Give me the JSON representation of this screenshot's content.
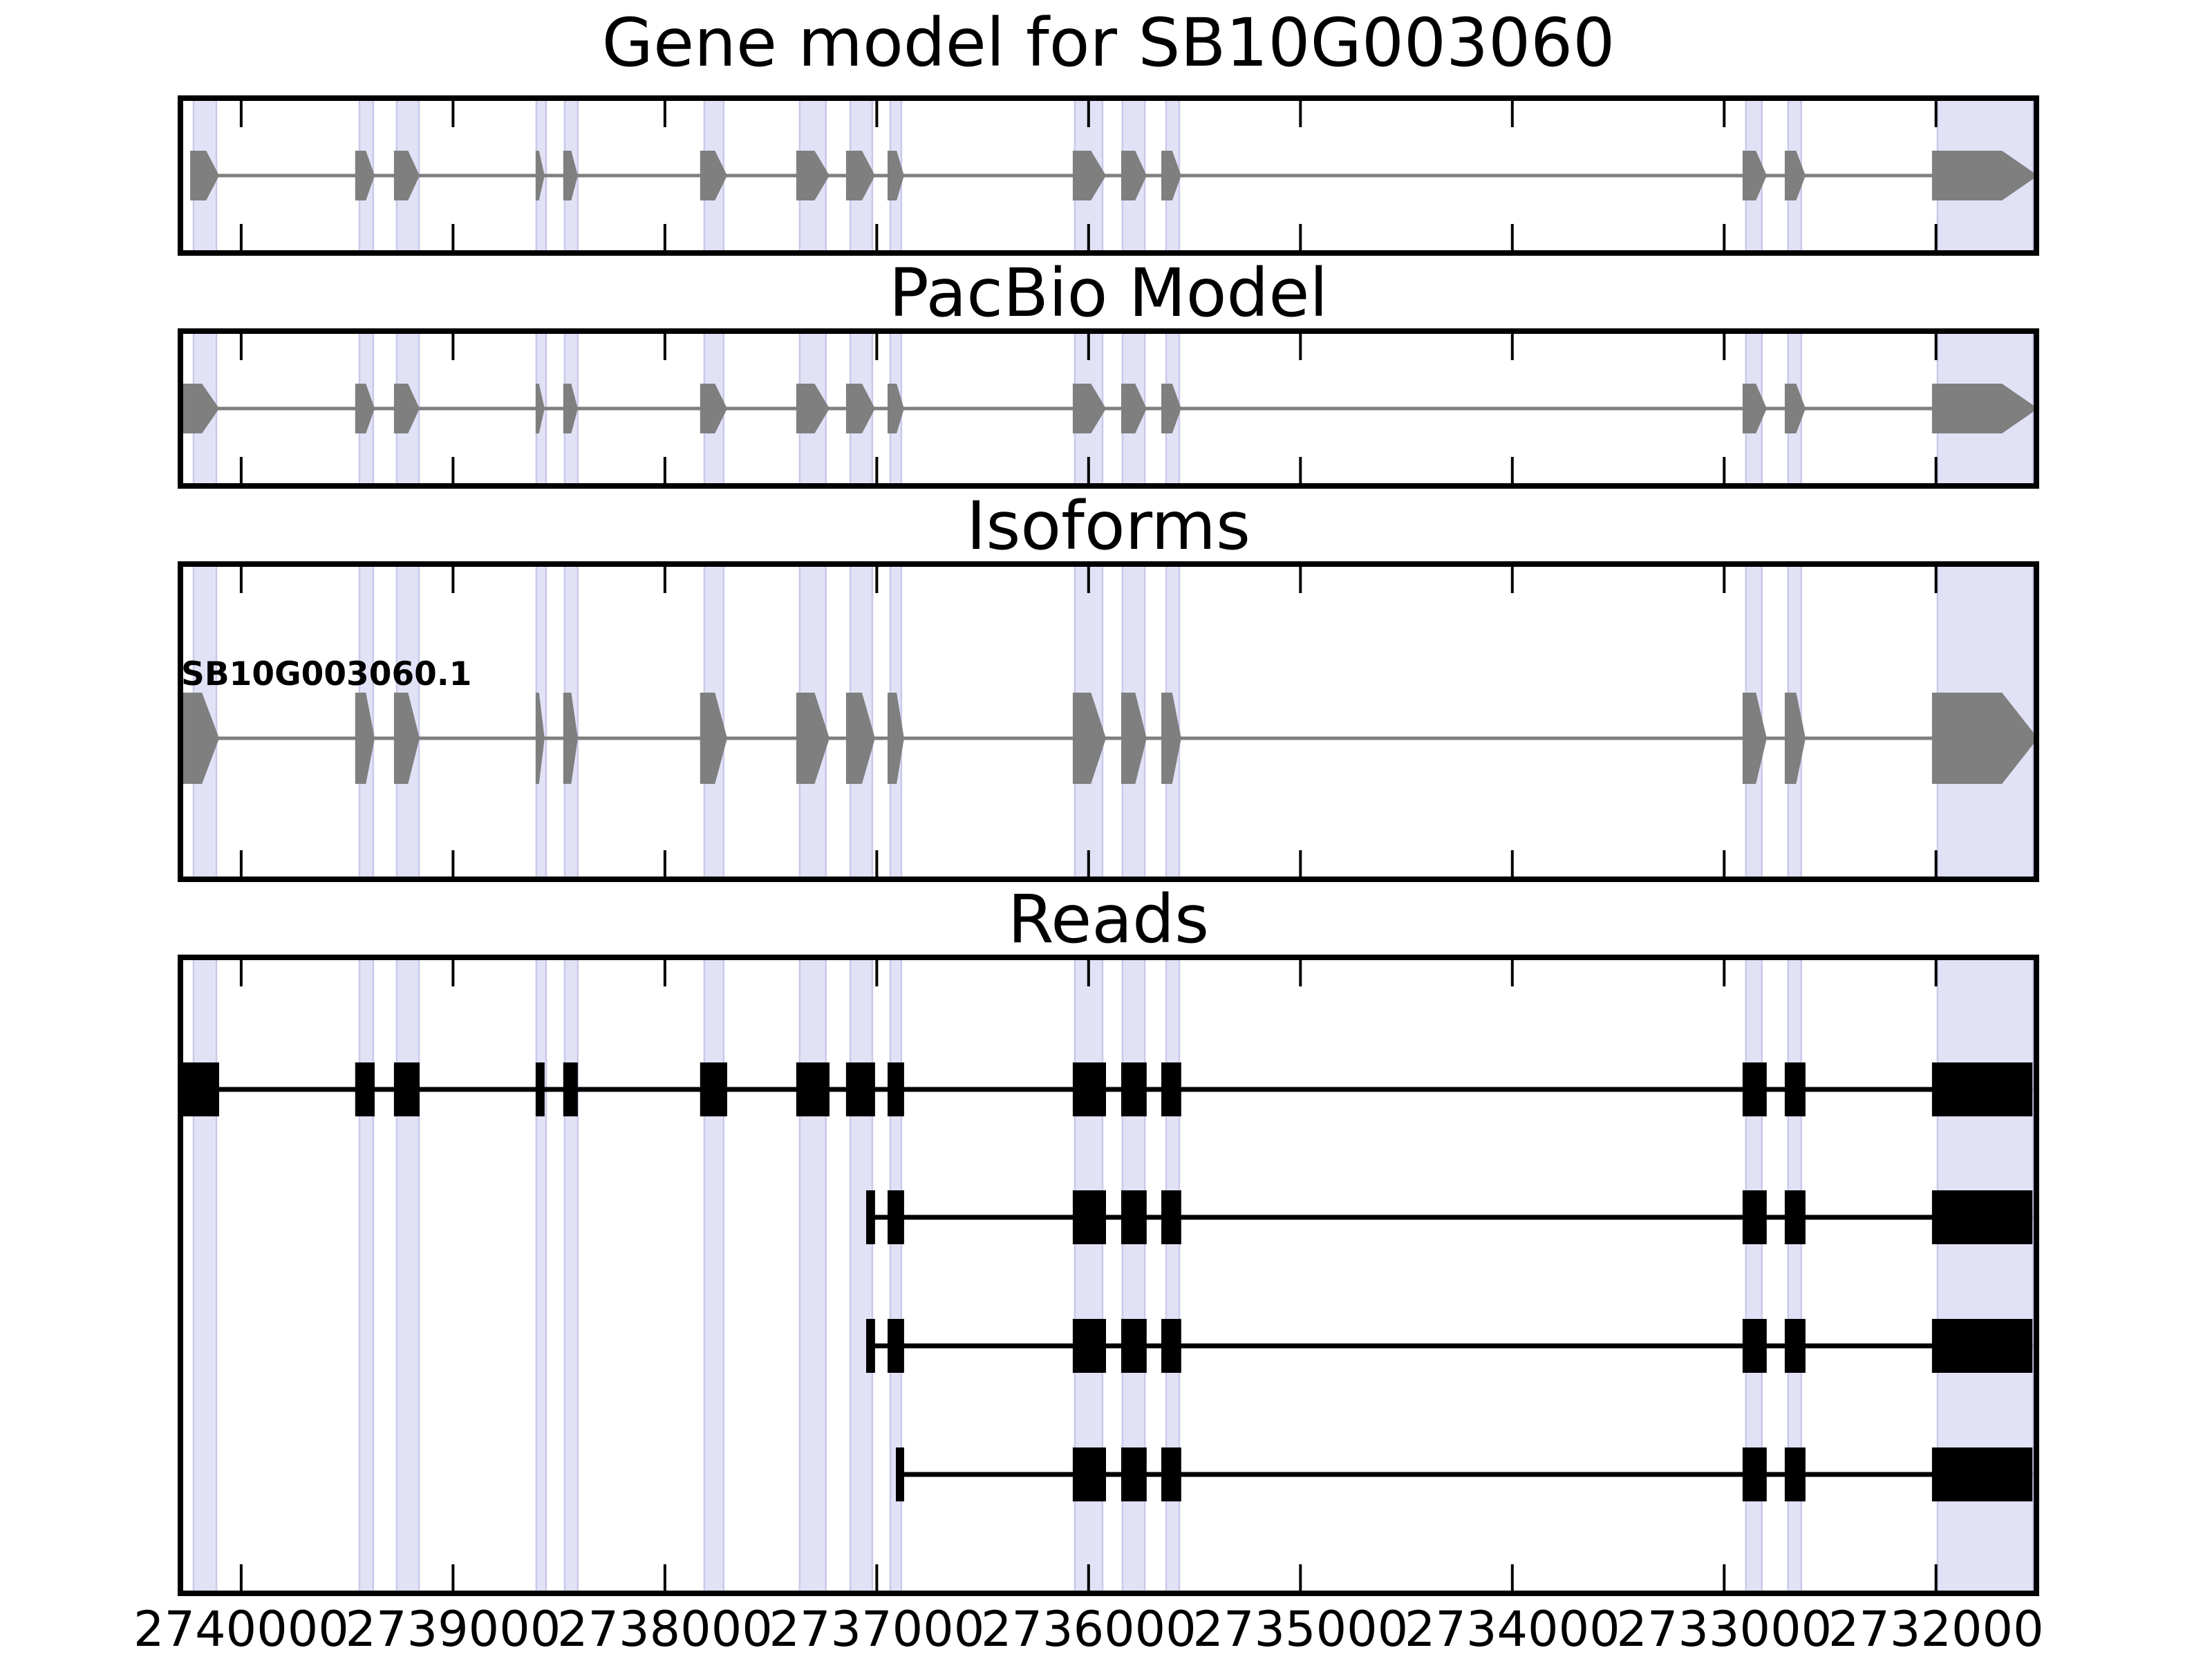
{
  "chart_data": {
    "type": "genome-tracks",
    "title": "Gene model for SB10G003060",
    "axis": {
      "xlim": [
        2740300,
        2731513
      ],
      "ticks": [
        {
          "value": 2740000,
          "label": "2740000"
        },
        {
          "value": 2739000,
          "label": "2739000"
        },
        {
          "value": 2738000,
          "label": "2738000"
        },
        {
          "value": 2737000,
          "label": "2737000"
        },
        {
          "value": 2736000,
          "label": "2736000"
        },
        {
          "value": 2735000,
          "label": "2735000"
        },
        {
          "value": 2734000,
          "label": "2734000"
        },
        {
          "value": 2733000,
          "label": "2733000"
        },
        {
          "value": 2732000,
          "label": "2732000"
        }
      ]
    },
    "colors": {
      "background": "#ffffff",
      "highlight_band": "#E2E2F7",
      "highlight_band_edge": "#C9C9EA",
      "model_gray": "#7f7f7f",
      "read_black": "#000000",
      "border": "#000000"
    },
    "highlights": [
      [
        2740225,
        2740117
      ],
      [
        2739442,
        2739377
      ],
      [
        2739266,
        2739161
      ],
      [
        2738607,
        2738561
      ],
      [
        2738473,
        2738411
      ],
      [
        2737814,
        2737723
      ],
      [
        2737364,
        2737240
      ],
      [
        2737125,
        2737021
      ],
      [
        2736936,
        2736884
      ],
      [
        2736065,
        2735934
      ],
      [
        2735840,
        2735735
      ],
      [
        2735634,
        2735572
      ],
      [
        2732897,
        2732822
      ],
      [
        2732698,
        2732636
      ],
      [
        2731993,
        2731542
      ]
    ],
    "panels": [
      {
        "id": "gene-model",
        "title": "Gene model for SB10G003060",
        "style": "arrow",
        "rows": [
          {
            "name": "SB10G003060",
            "exons": [
              [
                2740241,
                2740104
              ],
              [
                2739462,
                2739370
              ],
              [
                2739279,
                2739158
              ],
              [
                2738610,
                2738568
              ],
              [
                2738480,
                2738411
              ],
              [
                2737834,
                2737706
              ],
              [
                2737380,
                2737223
              ],
              [
                2737145,
                2737008
              ],
              [
                2736949,
                2736871
              ],
              [
                2736075,
                2735918
              ],
              [
                2735846,
                2735726
              ],
              [
                2735657,
                2735563
              ],
              [
                2732913,
                2732799
              ],
              [
                2732714,
                2732616
              ],
              [
                2732019,
                2731519
              ]
            ]
          }
        ]
      },
      {
        "id": "pacbio-model",
        "title": "PacBio Model",
        "style": "arrow",
        "rows": [
          {
            "name": "pacbio-model",
            "exons": [
              [
                2740284,
                2740104
              ],
              [
                2739462,
                2739370
              ],
              [
                2739279,
                2739158
              ],
              [
                2738610,
                2738568
              ],
              [
                2738480,
                2738411
              ],
              [
                2737834,
                2737706
              ],
              [
                2737380,
                2737223
              ],
              [
                2737145,
                2737008
              ],
              [
                2736949,
                2736871
              ],
              [
                2736075,
                2735918
              ],
              [
                2735846,
                2735726
              ],
              [
                2735657,
                2735563
              ],
              [
                2732913,
                2732799
              ],
              [
                2732714,
                2732616
              ],
              [
                2732019,
                2731519
              ]
            ]
          }
        ]
      },
      {
        "id": "isoforms",
        "title": "Isoforms",
        "style": "arrow",
        "rows": [
          {
            "name": "SB10G003060.1",
            "label": "SB10G003060.1",
            "exons": [
              [
                2740284,
                2740104
              ],
              [
                2739462,
                2739370
              ],
              [
                2739279,
                2739158
              ],
              [
                2738610,
                2738568
              ],
              [
                2738480,
                2738411
              ],
              [
                2737834,
                2737706
              ],
              [
                2737380,
                2737223
              ],
              [
                2737145,
                2737008
              ],
              [
                2736949,
                2736871
              ],
              [
                2736075,
                2735918
              ],
              [
                2735846,
                2735726
              ],
              [
                2735657,
                2735563
              ],
              [
                2732913,
                2732799
              ],
              [
                2732714,
                2732616
              ],
              [
                2732019,
                2731519
              ]
            ]
          }
        ]
      },
      {
        "id": "reads",
        "title": "Reads",
        "style": "rect",
        "rows": [
          {
            "name": "read-1",
            "exons": [
              [
                2740277,
                2740104
              ],
              [
                2739462,
                2739370
              ],
              [
                2739279,
                2739158
              ],
              [
                2738610,
                2738568
              ],
              [
                2738480,
                2738411
              ],
              [
                2737834,
                2737706
              ],
              [
                2737380,
                2737223
              ],
              [
                2737145,
                2737008
              ],
              [
                2736949,
                2736871
              ],
              [
                2736075,
                2735918
              ],
              [
                2735846,
                2735726
              ],
              [
                2735657,
                2735563
              ],
              [
                2732913,
                2732799
              ],
              [
                2732714,
                2732616
              ],
              [
                2732019,
                2731545
              ]
            ]
          },
          {
            "name": "read-2",
            "exons": [
              [
                2737050,
                2737008
              ],
              [
                2736949,
                2736871
              ],
              [
                2736075,
                2735918
              ],
              [
                2735846,
                2735726
              ],
              [
                2735657,
                2735563
              ],
              [
                2732913,
                2732799
              ],
              [
                2732714,
                2732616
              ],
              [
                2732019,
                2731545
              ]
            ]
          },
          {
            "name": "read-3",
            "exons": [
              [
                2737050,
                2737008
              ],
              [
                2736949,
                2736871
              ],
              [
                2736075,
                2735918
              ],
              [
                2735846,
                2735726
              ],
              [
                2735657,
                2735563
              ],
              [
                2732913,
                2732799
              ],
              [
                2732714,
                2732616
              ],
              [
                2732019,
                2731545
              ]
            ]
          },
          {
            "name": "read-4",
            "exons": [
              [
                2736910,
                2736871
              ],
              [
                2736075,
                2735918
              ],
              [
                2735846,
                2735726
              ],
              [
                2735657,
                2735563
              ],
              [
                2732913,
                2732799
              ],
              [
                2732714,
                2732616
              ],
              [
                2732019,
                2731545
              ]
            ]
          }
        ]
      }
    ]
  }
}
